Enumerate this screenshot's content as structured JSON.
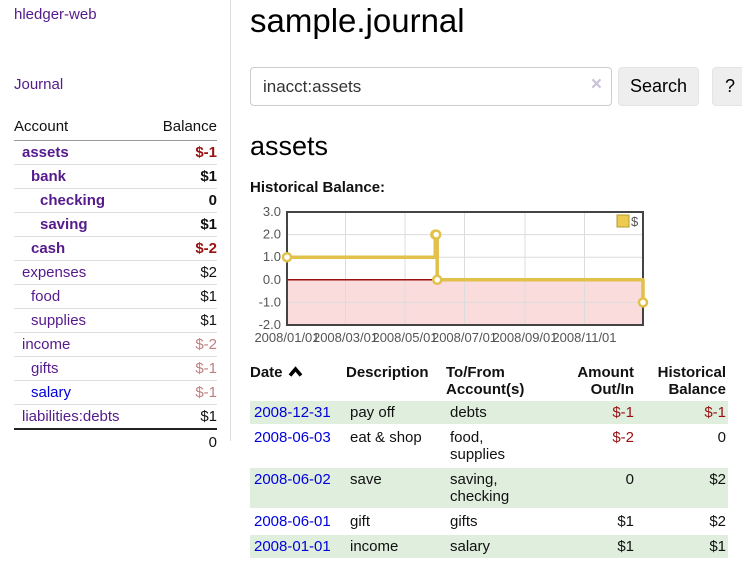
{
  "sidebar": {
    "brand": "hledger-web",
    "journal_label": "Journal",
    "accounts_table": {
      "headers": [
        "Account",
        "Balance"
      ],
      "rows": [
        {
          "name": "assets",
          "depth": 1,
          "bold": true,
          "link_color": "purple",
          "balance": "$-1",
          "balance_style": "neg"
        },
        {
          "name": "bank",
          "depth": 2,
          "bold": true,
          "link_color": "purple",
          "balance": "$1",
          "balance_style": "plain"
        },
        {
          "name": "checking",
          "depth": 3,
          "bold": true,
          "link_color": "purple",
          "balance": "0",
          "balance_style": "plain"
        },
        {
          "name": "saving",
          "depth": 3,
          "bold": true,
          "link_color": "purple",
          "balance": "$1",
          "balance_style": "plain"
        },
        {
          "name": "cash",
          "depth": 2,
          "bold": true,
          "link_color": "purple",
          "balance": "$-2",
          "balance_style": "neg"
        },
        {
          "name": "expenses",
          "depth": 1,
          "bold": false,
          "link_color": "purple",
          "balance": "$2",
          "balance_style": "plain"
        },
        {
          "name": "food",
          "depth": 2,
          "bold": false,
          "link_color": "purple",
          "balance": "$1",
          "balance_style": "plain"
        },
        {
          "name": "supplies",
          "depth": 2,
          "bold": false,
          "link_color": "purple",
          "balance": "$1",
          "balance_style": "plain"
        },
        {
          "name": "income",
          "depth": 1,
          "bold": false,
          "link_color": "purple",
          "balance": "$-2",
          "balance_style": "soft"
        },
        {
          "name": "gifts",
          "depth": 2,
          "bold": false,
          "link_color": "purple",
          "balance": "$-1",
          "balance_style": "soft"
        },
        {
          "name": "salary",
          "depth": 2,
          "bold": false,
          "link_color": "blue",
          "balance": "$-1",
          "balance_style": "soft"
        },
        {
          "name": "liabilities:debts",
          "depth": 1,
          "bold": false,
          "link_color": "purple",
          "balance": "$1",
          "balance_style": "plain"
        }
      ],
      "total": "0"
    }
  },
  "header": {
    "title": "sample.journal"
  },
  "search": {
    "value": "inacct:assets",
    "clear_icon": "×",
    "button_label": "Search",
    "help_label": "?"
  },
  "register": {
    "account_title": "assets",
    "chart_label": "Historical Balance:",
    "table": {
      "headers": [
        {
          "label": "Date",
          "sort": "asc",
          "align": "left"
        },
        {
          "label": "Description",
          "align": "left"
        },
        {
          "label": "To/From Account(s)",
          "align": "left"
        },
        {
          "label": "Amount Out/In",
          "align": "right"
        },
        {
          "label": "Historical Balance",
          "align": "right"
        }
      ],
      "rows": [
        {
          "date": "2008-12-31",
          "description": "pay off",
          "accounts": "debts",
          "amount": "$-1",
          "amount_negative": true,
          "balance": "$-1",
          "balance_negative": true
        },
        {
          "date": "2008-06-03",
          "description": "eat & shop",
          "accounts": "food, supplies",
          "amount": "$-2",
          "amount_negative": true,
          "balance": "0",
          "balance_negative": false
        },
        {
          "date": "2008-06-02",
          "description": "save",
          "accounts": "saving, checking",
          "amount": "0",
          "amount_negative": false,
          "balance": "$2",
          "balance_negative": false
        },
        {
          "date": "2008-06-01",
          "description": "gift",
          "accounts": "gifts",
          "amount": "$1",
          "amount_negative": false,
          "balance": "$2",
          "balance_negative": false
        },
        {
          "date": "2008-01-01",
          "description": "income",
          "accounts": "salary",
          "amount": "$1",
          "amount_negative": false,
          "balance": "$1",
          "balance_negative": false
        }
      ]
    }
  },
  "chart_data": {
    "type": "line",
    "interpolation": "step-after",
    "title": "Historical Balance",
    "series": [
      {
        "name": "$",
        "points": [
          [
            "2008-01-01",
            1
          ],
          [
            "2008-06-01",
            2
          ],
          [
            "2008-06-02",
            2
          ],
          [
            "2008-06-03",
            0
          ],
          [
            "2008-12-31",
            -1
          ]
        ]
      }
    ],
    "x_range": [
      "2008-01-01",
      "2008-12-31"
    ],
    "x_ticks": [
      "2008/01/01",
      "2008/03/01",
      "2008/05/01",
      "2008/07/01",
      "2008/09/01",
      "2008/11/01"
    ],
    "y_ticks": [
      3.0,
      2.0,
      1.0,
      0.0,
      -1.0,
      -2.0
    ],
    "ylim": [
      -2,
      3
    ],
    "grid": true,
    "legend_position": "top-right",
    "line_color": "#e2c14b",
    "marker_fill": "#ffffff",
    "negative_region_color": "#fbdcdc",
    "zero_line_color": "#991111",
    "plot_border_color": "#444444"
  }
}
